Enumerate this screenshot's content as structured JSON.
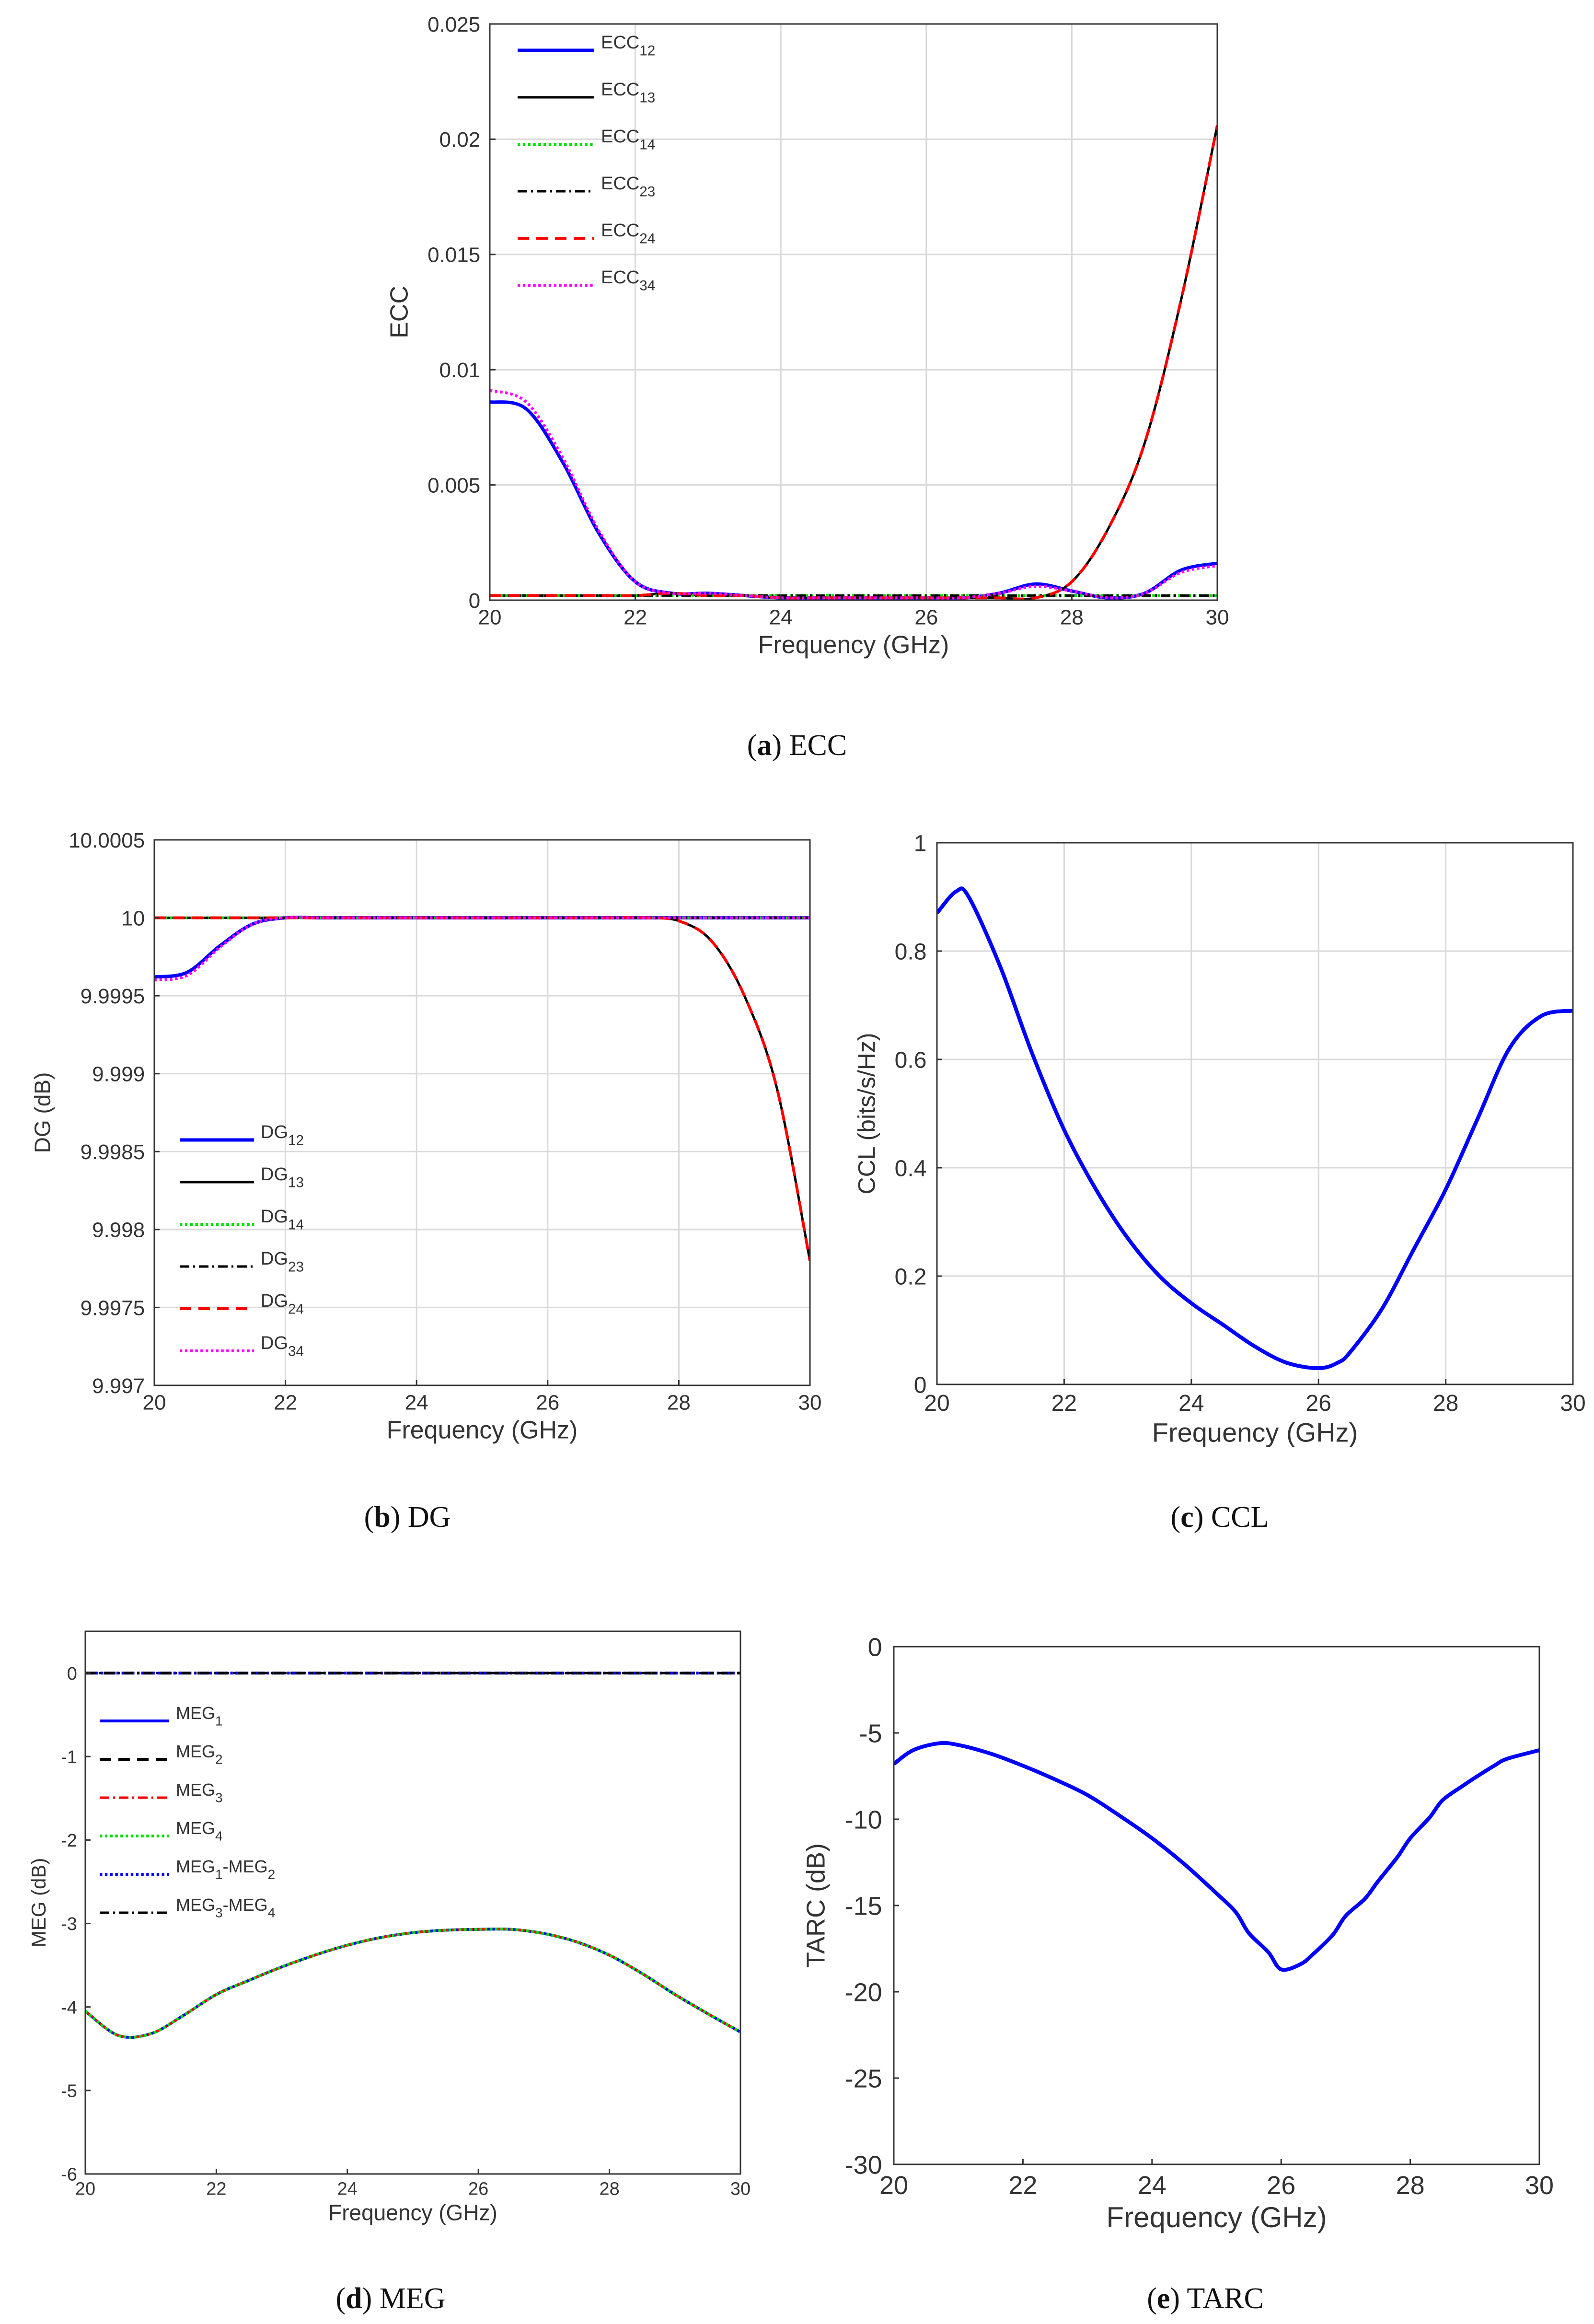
{
  "figure": {
    "panels": [
      {
        "id": "a",
        "caption_letter": "a",
        "caption_text": " ECC"
      },
      {
        "id": "b",
        "caption_letter": "b",
        "caption_text": " DG"
      },
      {
        "id": "c",
        "caption_letter": "c",
        "caption_text": " CCL"
      },
      {
        "id": "d",
        "caption_letter": "d",
        "caption_text": " MEG"
      },
      {
        "id": "e",
        "caption_letter": "e",
        "caption_text": " TARC"
      }
    ]
  },
  "colors": {
    "blue": "#0000ff",
    "black": "#000000",
    "green": "#00dd00",
    "red": "#ff0000",
    "magenta": "#ff00ff",
    "grid": "#d9d9d9",
    "axis": "#333333"
  },
  "chart_data": [
    {
      "id": "a",
      "type": "line",
      "title": "",
      "xlabel": "Frequency (GHz)",
      "ylabel": "ECC",
      "xlim": [
        20,
        30
      ],
      "ylim": [
        0,
        0.025
      ],
      "xticks": [
        20,
        22,
        24,
        26,
        28,
        30
      ],
      "xtick_labels": [
        "20",
        "22",
        "24",
        "26",
        "28",
        "30"
      ],
      "yticks": [
        0,
        0.005,
        0.01,
        0.015,
        0.02,
        0.025
      ],
      "ytick_labels": [
        "0",
        "0.005",
        "0.01",
        "0.015",
        "0.02",
        "0.025"
      ],
      "grid": true,
      "legend_position": "top-left",
      "x": [
        20,
        20.5,
        21,
        21.5,
        22,
        22.5,
        23,
        23.5,
        24,
        24.5,
        25,
        25.5,
        26,
        26.5,
        27,
        27.5,
        28,
        28.5,
        29,
        29.5,
        30
      ],
      "series": [
        {
          "name": "ECC",
          "sub": "12",
          "color": "#0000ff",
          "style": "solid",
          "width": 7,
          "values": [
            0.0086,
            0.0083,
            0.006,
            0.0029,
            0.0008,
            0.0003,
            0.0003,
            0.0002,
            0.0001,
            0.0001,
            0.0001,
            0.0001,
            0.0001,
            0.0001,
            0.0003,
            0.0007,
            0.0004,
            0.0001,
            0.0003,
            0.0013,
            0.0016
          ]
        },
        {
          "name": "ECC",
          "sub": "13",
          "color": "#000000",
          "style": "solid",
          "width": 5,
          "values": [
            0.0002,
            0.0002,
            0.0002,
            0.0002,
            0.0002,
            0.0003,
            0.0002,
            0.0002,
            0.0001,
            0.0001,
            0.0001,
            0.0001,
            0.0001,
            0.0001,
            0.0001,
            0.0001,
            0.0008,
            0.0031,
            0.0068,
            0.013,
            0.0206
          ]
        },
        {
          "name": "ECC",
          "sub": "14",
          "color": "#00dd00",
          "style": "dotted",
          "width": 6,
          "values": [
            0.0002,
            0.0002,
            0.0002,
            0.0002,
            0.0002,
            0.0002,
            0.0002,
            0.0002,
            0.0002,
            0.0002,
            0.0002,
            0.0002,
            0.0002,
            0.0002,
            0.0002,
            0.0002,
            0.0002,
            0.0002,
            0.0002,
            0.0002,
            0.0002
          ]
        },
        {
          "name": "ECC",
          "sub": "23",
          "color": "#000000",
          "style": "dashdot",
          "width": 5,
          "values": [
            0.0002,
            0.0002,
            0.0002,
            0.0002,
            0.0002,
            0.0002,
            0.0002,
            0.0002,
            0.0002,
            0.0002,
            0.0002,
            0.0002,
            0.0002,
            0.0002,
            0.0002,
            0.0002,
            0.0002,
            0.0002,
            0.0002,
            0.0002,
            0.0002
          ]
        },
        {
          "name": "ECC",
          "sub": "24",
          "color": "#ff0000",
          "style": "dashed",
          "width": 6,
          "values": [
            0.0002,
            0.0002,
            0.0002,
            0.0002,
            0.0002,
            0.0003,
            0.0002,
            0.0002,
            0.0001,
            0.0001,
            0.0001,
            0.0001,
            0.0001,
            0.0001,
            0.0001,
            0.0001,
            0.0008,
            0.0031,
            0.0068,
            0.013,
            0.0206
          ]
        },
        {
          "name": "ECC",
          "sub": "34",
          "color": "#ff00ff",
          "style": "dotted",
          "width": 6,
          "values": [
            0.0091,
            0.0086,
            0.0062,
            0.003,
            0.0008,
            0.0003,
            0.0003,
            0.0002,
            0.0001,
            0.0001,
            0.0001,
            0.0001,
            0.0001,
            0.0001,
            0.0003,
            0.0006,
            0.0004,
            0.0001,
            0.0003,
            0.0012,
            0.0015
          ]
        }
      ]
    },
    {
      "id": "b",
      "type": "line",
      "title": "",
      "xlabel": "Frequency (GHz)",
      "ylabel": "DG (dB)",
      "xlim": [
        20,
        30
      ],
      "ylim": [
        9.997,
        10.0005
      ],
      "xticks": [
        20,
        22,
        24,
        26,
        28,
        30
      ],
      "xtick_labels": [
        "20",
        "22",
        "24",
        "26",
        "28",
        "30"
      ],
      "yticks": [
        9.997,
        9.9975,
        9.998,
        9.9985,
        9.999,
        9.9995,
        10,
        10.0005
      ],
      "ytick_labels": [
        "9.997",
        "9.9975",
        "9.998",
        "9.9985",
        "9.999",
        "9.9995",
        "10",
        "10.0005"
      ],
      "grid": true,
      "legend_position": "bottom-left",
      "x": [
        20,
        20.5,
        21,
        21.5,
        22,
        22.5,
        23,
        23.5,
        24,
        24.5,
        25,
        25.5,
        26,
        26.5,
        27,
        27.5,
        28,
        28.5,
        29,
        29.5,
        30
      ],
      "series": [
        {
          "name": "DG",
          "sub": "12",
          "color": "#0000ff",
          "style": "solid",
          "width": 7,
          "values": [
            9.99962,
            9.99965,
            9.99982,
            9.99996,
            10,
            10,
            10,
            10,
            10,
            10,
            10,
            10,
            10,
            10,
            10,
            10,
            10,
            10,
            10,
            10,
            10
          ]
        },
        {
          "name": "DG",
          "sub": "13",
          "color": "#000000",
          "style": "solid",
          "width": 5,
          "values": [
            10,
            10,
            10,
            10,
            10,
            10,
            10,
            10,
            10,
            10,
            10,
            10,
            10,
            10,
            10,
            10,
            9.99998,
            9.99985,
            9.9995,
            9.9989,
            9.9978
          ]
        },
        {
          "name": "DG",
          "sub": "14",
          "color": "#00dd00",
          "style": "dotted",
          "width": 6,
          "values": [
            10,
            10,
            10,
            10,
            10,
            10,
            10,
            10,
            10,
            10,
            10,
            10,
            10,
            10,
            10,
            10,
            10,
            10,
            10,
            10,
            10
          ]
        },
        {
          "name": "DG",
          "sub": "23",
          "color": "#000000",
          "style": "dashdot",
          "width": 5,
          "values": [
            10,
            10,
            10,
            10,
            10,
            10,
            10,
            10,
            10,
            10,
            10,
            10,
            10,
            10,
            10,
            10,
            10,
            10,
            10,
            10,
            10
          ]
        },
        {
          "name": "DG",
          "sub": "24",
          "color": "#ff0000",
          "style": "dashed",
          "width": 6,
          "values": [
            10,
            10,
            10,
            10,
            10,
            10,
            10,
            10,
            10,
            10,
            10,
            10,
            10,
            10,
            10,
            10,
            9.99998,
            9.99985,
            9.9995,
            9.9989,
            9.9978
          ]
        },
        {
          "name": "DG",
          "sub": "34",
          "color": "#ff00ff",
          "style": "dotted",
          "width": 6,
          "values": [
            9.9996,
            9.99963,
            9.99981,
            9.99996,
            10,
            10,
            10,
            10,
            10,
            10,
            10,
            10,
            10,
            10,
            10,
            10,
            10,
            10,
            10,
            10,
            10
          ]
        }
      ]
    },
    {
      "id": "c",
      "type": "line",
      "title": "",
      "xlabel": "Frequency (GHz)",
      "ylabel": "CCL (bits/s/Hz)",
      "xlim": [
        20,
        30
      ],
      "ylim": [
        0,
        1
      ],
      "xticks": [
        20,
        22,
        24,
        26,
        28,
        30
      ],
      "xtick_labels": [
        "20",
        "22",
        "24",
        "26",
        "28",
        "30"
      ],
      "yticks": [
        0,
        0.2,
        0.4,
        0.6,
        0.8,
        1
      ],
      "ytick_labels": [
        "0",
        "0.2",
        "0.4",
        "0.6",
        "0.8",
        "1"
      ],
      "grid": true,
      "legend_position": "none",
      "x": [
        20,
        20.3,
        20.5,
        21,
        21.5,
        22,
        22.5,
        23,
        23.5,
        24,
        24.5,
        25,
        25.5,
        26,
        26.3,
        26.5,
        27,
        27.5,
        28,
        28.5,
        29,
        29.5,
        30
      ],
      "series": [
        {
          "name": "CCL",
          "sub": "",
          "color": "#0000ff",
          "style": "solid",
          "width": 8,
          "values": [
            0.87,
            0.91,
            0.9,
            0.77,
            0.61,
            0.47,
            0.36,
            0.27,
            0.2,
            0.15,
            0.11,
            0.07,
            0.04,
            0.03,
            0.04,
            0.06,
            0.14,
            0.25,
            0.36,
            0.49,
            0.62,
            0.68,
            0.69
          ]
        }
      ]
    },
    {
      "id": "d",
      "type": "line",
      "title": "",
      "xlabel": "Frequency (GHz)",
      "ylabel": "MEG (dB)",
      "xlim": [
        20,
        30
      ],
      "ylim": [
        -6,
        0.5
      ],
      "xticks": [
        20,
        22,
        24,
        26,
        28,
        30
      ],
      "xtick_labels": [
        "20",
        "22",
        "24",
        "26",
        "28",
        "30"
      ],
      "yticks": [
        -6,
        -5,
        -4,
        -3,
        -2,
        -1,
        0
      ],
      "ytick_labels": [
        "-6",
        "-5",
        "-4",
        "-3",
        "-2",
        "-1",
        "0"
      ],
      "grid": false,
      "legend_position": "middle-left",
      "x": [
        20,
        20.5,
        21,
        21.5,
        22,
        22.5,
        23,
        23.5,
        24,
        24.5,
        25,
        25.5,
        26,
        26.5,
        27,
        27.5,
        28,
        28.5,
        29,
        29.5,
        30
      ],
      "series": [
        {
          "name": "MEG",
          "sub": "1",
          "color": "#0000ff",
          "style": "solid",
          "width": 6,
          "values": [
            -4.05,
            -4.34,
            -4.32,
            -4.1,
            -3.85,
            -3.68,
            -3.52,
            -3.38,
            -3.26,
            -3.17,
            -3.11,
            -3.08,
            -3.07,
            -3.07,
            -3.12,
            -3.22,
            -3.38,
            -3.6,
            -3.85,
            -4.08,
            -4.3
          ]
        },
        {
          "name": "MEG",
          "sub": "2",
          "color": "#000000",
          "style": "dashed",
          "width": 6,
          "values": [
            0,
            0,
            0,
            0,
            0,
            0,
            0,
            0,
            0,
            0,
            0,
            0,
            0,
            0,
            0,
            0,
            0,
            0,
            0,
            0,
            0
          ]
        },
        {
          "name": "MEG",
          "sub": "3",
          "color": "#ff0000",
          "style": "dashdot",
          "width": 5,
          "values": [
            -4.05,
            -4.34,
            -4.32,
            -4.1,
            -3.85,
            -3.68,
            -3.52,
            -3.38,
            -3.26,
            -3.17,
            -3.11,
            -3.08,
            -3.07,
            -3.07,
            -3.12,
            -3.22,
            -3.38,
            -3.6,
            -3.85,
            -4.08,
            -4.3
          ]
        },
        {
          "name": "MEG",
          "sub": "4",
          "color": "#00dd00",
          "style": "dotted",
          "width": 6,
          "values": [
            -4.05,
            -4.34,
            -4.32,
            -4.1,
            -3.85,
            -3.68,
            -3.52,
            -3.38,
            -3.26,
            -3.17,
            -3.11,
            -3.08,
            -3.07,
            -3.07,
            -3.12,
            -3.22,
            -3.38,
            -3.6,
            -3.85,
            -4.08,
            -4.3
          ]
        },
        {
          "name": "MEG",
          "sub": "1",
          "name2": "-MEG",
          "sub2": "2",
          "color": "#0000ff",
          "style": "dotted",
          "width": 6,
          "values": [
            0,
            0,
            0,
            0,
            0,
            0,
            0,
            0,
            0,
            0,
            0,
            0,
            0,
            0,
            0,
            0,
            0,
            0,
            0,
            0,
            0
          ]
        },
        {
          "name": "MEG",
          "sub": "3",
          "name2": "-MEG",
          "sub2": "4",
          "color": "#000000",
          "style": "dashdot",
          "width": 5,
          "values": [
            0,
            0,
            0,
            0,
            0,
            0,
            0,
            0,
            0,
            0,
            0,
            0,
            0,
            0,
            0,
            0,
            0,
            0,
            0,
            0,
            0
          ]
        }
      ]
    },
    {
      "id": "e",
      "type": "line",
      "title": "",
      "xlabel": "Frequency (GHz)",
      "ylabel": "TARC (dB)",
      "xlim": [
        20,
        30
      ],
      "ylim": [
        -30,
        0
      ],
      "xticks": [
        20,
        22,
        24,
        26,
        28,
        30
      ],
      "xtick_labels": [
        "20",
        "22",
        "24",
        "26",
        "28",
        "30"
      ],
      "yticks": [
        -30,
        -25,
        -20,
        -15,
        -10,
        -5,
        0
      ],
      "ytick_labels": [
        "-30",
        "-25",
        "-20",
        "-15",
        "-10",
        "-5",
        "0"
      ],
      "grid": false,
      "legend_position": "none",
      "x": [
        20,
        20.3,
        20.7,
        21,
        21.5,
        22,
        22.5,
        23,
        23.5,
        24,
        24.5,
        25,
        25.3,
        25.5,
        25.8,
        26,
        26.3,
        26.5,
        26.8,
        27,
        27.3,
        27.5,
        27.8,
        28,
        28.3,
        28.5,
        28.8,
        29,
        29.3,
        29.5,
        30
      ],
      "series": [
        {
          "name": "TARC",
          "sub": "",
          "color": "#0000ff",
          "style": "solid",
          "width": 8,
          "values": [
            -6.8,
            -6.0,
            -5.6,
            -5.7,
            -6.2,
            -6.9,
            -7.7,
            -8.6,
            -9.8,
            -11.1,
            -12.6,
            -14.3,
            -15.4,
            -16.6,
            -17.7,
            -18.7,
            -18.4,
            -17.8,
            -16.7,
            -15.6,
            -14.6,
            -13.6,
            -12.2,
            -11.1,
            -9.9,
            -8.9,
            -8.1,
            -7.6,
            -6.9,
            -6.5,
            -6.0
          ]
        }
      ]
    }
  ]
}
